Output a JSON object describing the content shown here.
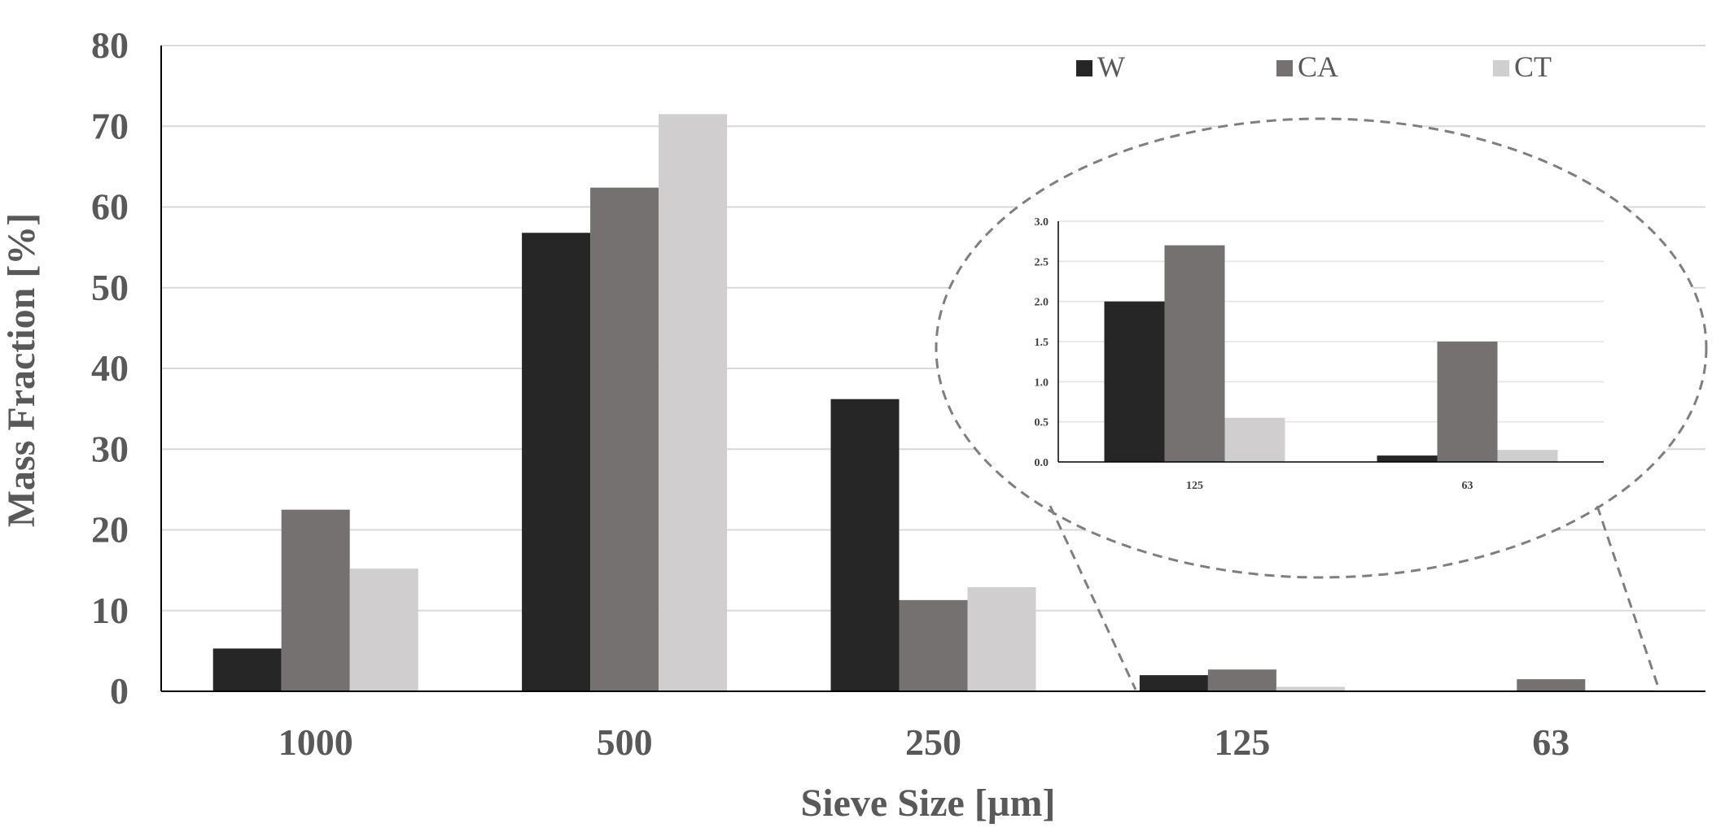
{
  "chart_data": {
    "type": "bar",
    "title": "",
    "xlabel": "Sieve Size [µm]",
    "ylabel": "Mass Fraction [%]",
    "ylim": [
      0,
      80
    ],
    "yticks": [
      0,
      10,
      20,
      30,
      40,
      50,
      60,
      70,
      80
    ],
    "categories": [
      "1000",
      "500",
      "250",
      "125",
      "63"
    ],
    "series": [
      {
        "name": "W",
        "color": "#262626",
        "values": [
          5.3,
          56.8,
          36.2,
          2.0,
          0.08
        ]
      },
      {
        "name": "CA",
        "color": "#767171",
        "values": [
          22.5,
          62.4,
          11.3,
          2.7,
          1.5
        ]
      },
      {
        "name": "CT",
        "color": "#d0cece",
        "values": [
          15.2,
          71.5,
          12.9,
          0.55,
          0.15
        ]
      }
    ],
    "grid": true,
    "legend_position": "top-right",
    "inset": {
      "type": "bar",
      "categories": [
        "125",
        "63"
      ],
      "ylim": [
        0,
        3.0
      ],
      "yticks": [
        "0.0",
        "0.5",
        "1.0",
        "1.5",
        "2.0",
        "2.5",
        "3.0"
      ],
      "zoom_of_categories": [
        "125",
        "63"
      ]
    }
  }
}
